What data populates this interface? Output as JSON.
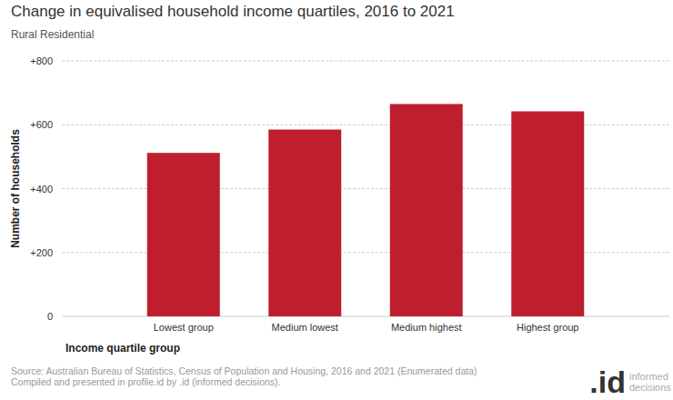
{
  "chart_data": {
    "type": "bar",
    "title": "Change in equivalised household income quartiles, 2016 to 2021",
    "subtitle": "Rural Residential",
    "x_label": "Income quartile group",
    "y_label": "Number of households",
    "categories": [
      "Lowest group",
      "Medium lowest",
      "Medium highest",
      "Highest group"
    ],
    "values": [
      512,
      585,
      665,
      642
    ],
    "color": "#be1e2d",
    "ylim": [
      0,
      800
    ],
    "yticks": [
      0,
      {
        "value": 200,
        "label": "+200"
      },
      {
        "value": 400,
        "label": "+400"
      },
      {
        "value": 600,
        "label": "+600"
      },
      {
        "value": 800,
        "label": "+800"
      }
    ],
    "grid": true,
    "source": [
      "Source: Australian Bureau of Statistics, Census of Population and Housing, 2016 and 2021 (Enumerated data)",
      "Compiled and presented in profile.id by .id (informed decisions)."
    ],
    "brand": ".id",
    "brand_tagline": [
      "informed",
      "decisions"
    ]
  }
}
